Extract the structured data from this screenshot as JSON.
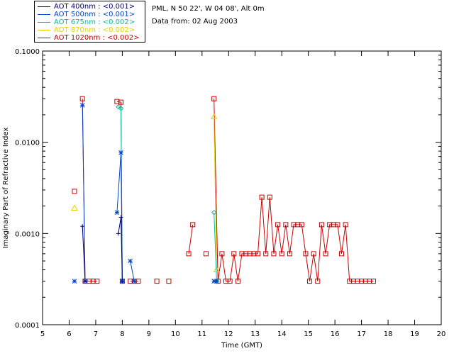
{
  "header": {
    "site": "PML, N 50 22', W 04 08', Alt 0m",
    "date": "Data from: 02 Aug 2003"
  },
  "legend": [
    {
      "label": "AOT  400nm : <0.001>",
      "color": "#000080"
    },
    {
      "label": "AOT  500nm : <0.001>",
      "color": "#0044cc"
    },
    {
      "label": "AOT  675nm : <0.002>",
      "color": "#00c0a0"
    },
    {
      "label": "AOT  870nm : <0.002>",
      "color": "#e8d000"
    },
    {
      "label": "AOT 1020nm : <0.002>",
      "color": "#cc0000"
    }
  ],
  "chart_data": {
    "type": "line",
    "xlabel": "Time (GMT)",
    "ylabel": "Imaginary Part of Refractive Index",
    "xlim": [
      5,
      20
    ],
    "ylim": [
      0.0001,
      0.1
    ],
    "yscale": "log",
    "xticks": [
      "5",
      "6",
      "7",
      "8",
      "9",
      "10",
      "11",
      "12",
      "13",
      "14",
      "15",
      "16",
      "17",
      "18",
      "19",
      "20"
    ],
    "yticks": [
      {
        "value": 0.0001,
        "label": "0.0001"
      },
      {
        "value": 0.001,
        "label": "0.0010"
      },
      {
        "value": 0.01,
        "label": "0.0100"
      },
      {
        "value": 0.1,
        "label": "0.1000"
      }
    ],
    "series": [
      {
        "name": "AOT 1020nm",
        "color": "#cc0000",
        "marker": "square",
        "segments": [
          [
            [
              6.2,
              0.0029
            ]
          ],
          [
            [
              6.5,
              0.03
            ],
            [
              6.6,
              0.0003
            ],
            [
              6.75,
              0.0003
            ],
            [
              6.9,
              0.0003
            ],
            [
              7.05,
              0.0003
            ]
          ],
          [
            [
              7.8,
              0.028
            ],
            [
              7.95,
              0.0275
            ],
            [
              8.0,
              0.0003
            ]
          ],
          [
            [
              8.3,
              0.0003
            ],
            [
              8.45,
              0.0003
            ],
            [
              8.6,
              0.0003
            ]
          ],
          [
            [
              9.3,
              0.0003
            ]
          ],
          [
            [
              9.75,
              0.0003
            ]
          ],
          [
            [
              10.5,
              0.0006
            ],
            [
              10.65,
              0.00125
            ]
          ],
          [
            [
              11.15,
              0.0006
            ]
          ],
          [
            [
              11.45,
              0.03
            ],
            [
              11.6,
              0.0003
            ],
            [
              11.75,
              0.0006
            ],
            [
              11.9,
              0.0003
            ],
            [
              12.05,
              0.0003
            ],
            [
              12.2,
              0.0006
            ],
            [
              12.35,
              0.0003
            ],
            [
              12.5,
              0.0006
            ],
            [
              12.65,
              0.0006
            ],
            [
              12.8,
              0.0006
            ],
            [
              12.95,
              0.0006
            ],
            [
              13.1,
              0.0006
            ],
            [
              13.25,
              0.0025
            ],
            [
              13.4,
              0.0006
            ],
            [
              13.55,
              0.0025
            ],
            [
              13.7,
              0.0006
            ],
            [
              13.85,
              0.00125
            ],
            [
              14.0,
              0.0006
            ],
            [
              14.15,
              0.00125
            ],
            [
              14.3,
              0.0006
            ],
            [
              14.45,
              0.00125
            ],
            [
              14.6,
              0.00125
            ],
            [
              14.75,
              0.00125
            ],
            [
              14.9,
              0.0006
            ],
            [
              15.05,
              0.0003
            ],
            [
              15.2,
              0.0006
            ],
            [
              15.35,
              0.0003
            ],
            [
              15.5,
              0.00125
            ],
            [
              15.65,
              0.0006
            ],
            [
              15.8,
              0.00125
            ],
            [
              15.95,
              0.00125
            ],
            [
              16.1,
              0.00125
            ],
            [
              16.25,
              0.0006
            ],
            [
              16.4,
              0.00125
            ],
            [
              16.55,
              0.0003
            ],
            [
              16.7,
              0.0003
            ],
            [
              16.85,
              0.0003
            ],
            [
              17.0,
              0.0003
            ],
            [
              17.15,
              0.0003
            ],
            [
              17.3,
              0.0003
            ],
            [
              17.45,
              0.0003
            ]
          ]
        ]
      },
      {
        "name": "AOT 870nm",
        "color": "#e8d000",
        "marker": "triangle",
        "segments": [
          [
            [
              6.2,
              0.0019
            ]
          ],
          [
            [
              11.45,
              0.019
            ],
            [
              11.55,
              0.0004
            ]
          ]
        ]
      },
      {
        "name": "AOT 675nm",
        "color": "#00c0a0",
        "marker": "diamond",
        "segments": [
          [
            [
              7.85,
              0.0245
            ],
            [
              7.95,
              0.0235
            ],
            [
              8.0,
              0.0003
            ]
          ],
          [
            [
              11.45,
              0.0017
            ],
            [
              11.55,
              0.0003
            ]
          ]
        ]
      },
      {
        "name": "AOT 500nm",
        "color": "#0044cc",
        "marker": "asterisk",
        "segments": [
          [
            [
              6.2,
              0.0003
            ]
          ],
          [
            [
              6.5,
              0.0255
            ],
            [
              6.6,
              0.0003
            ]
          ],
          [
            [
              7.8,
              0.0017
            ],
            [
              7.95,
              0.0077
            ],
            [
              8.0,
              0.0003
            ]
          ],
          [
            [
              8.3,
              0.0005
            ],
            [
              8.45,
              0.0003
            ]
          ],
          [
            [
              11.45,
              0.0003
            ],
            [
              11.55,
              0.0003
            ]
          ]
        ]
      },
      {
        "name": "AOT 400nm",
        "color": "#000080",
        "marker": "plus",
        "segments": [
          [
            [
              6.5,
              0.0012
            ],
            [
              6.6,
              0.0003
            ]
          ],
          [
            [
              7.85,
              0.001
            ],
            [
              7.95,
              0.0015
            ],
            [
              8.0,
              0.0003
            ]
          ]
        ]
      }
    ]
  }
}
